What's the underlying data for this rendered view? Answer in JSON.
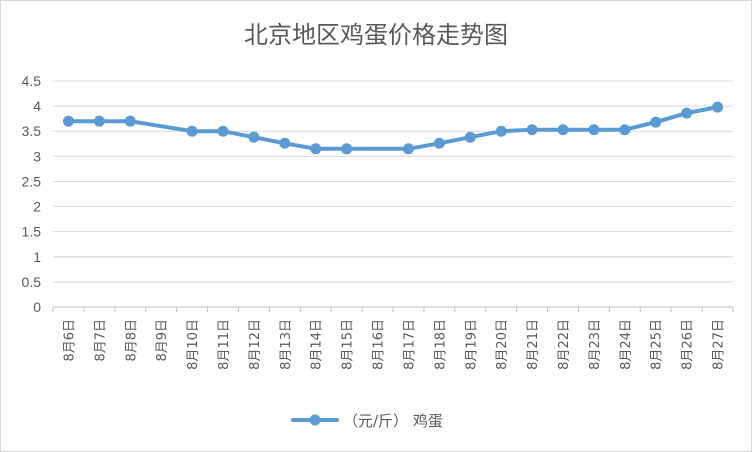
{
  "chart_data": {
    "type": "line",
    "title": "北京地区鸡蛋价格走势图",
    "xlabel": "",
    "ylabel": "",
    "categories": [
      "8月6日",
      "8月7日",
      "8月8日",
      "8月9日",
      "8月10日",
      "8月11日",
      "8月12日",
      "8月13日",
      "8月14日",
      "8月15日",
      "8月16日",
      "8月17日",
      "8月18日",
      "8月19日",
      "8月20日",
      "8月21日",
      "8月22日",
      "8月23日",
      "8月24日",
      "8月25日",
      "8月26日",
      "8月27日"
    ],
    "series": [
      {
        "name": "（元/斤） 鸡蛋",
        "values": [
          3.7,
          3.7,
          3.7,
          null,
          3.5,
          3.5,
          3.38,
          3.26,
          3.15,
          3.15,
          null,
          3.15,
          3.26,
          3.38,
          3.5,
          3.53,
          3.53,
          3.53,
          3.53,
          3.68,
          3.86,
          3.98
        ],
        "color": "#5b9bd5"
      }
    ],
    "ylim": [
      0,
      4.5
    ],
    "yticks": [
      "0",
      "0.5",
      "1",
      "1.5",
      "2",
      "2.5",
      "3",
      "3.5",
      "4",
      "4.5"
    ],
    "grid": true,
    "legend": "bottom"
  }
}
